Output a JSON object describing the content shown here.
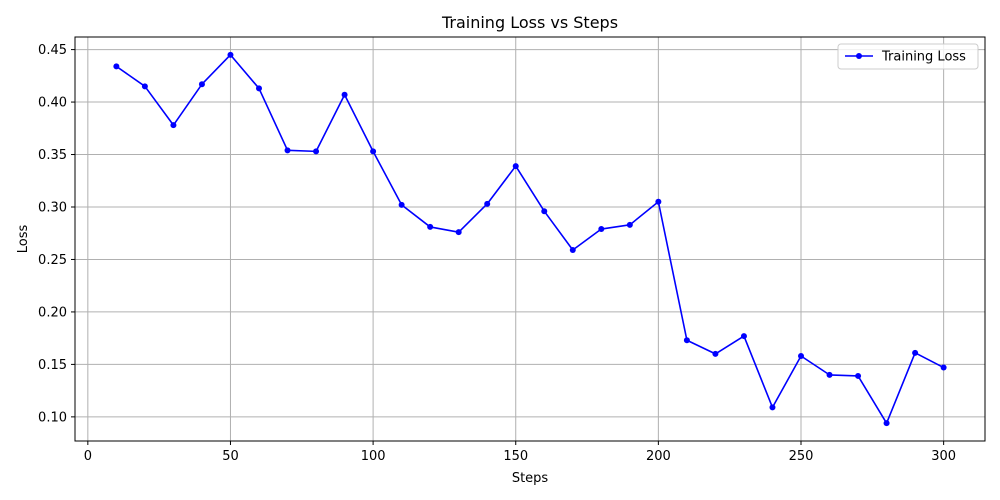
{
  "chart_data": {
    "type": "line",
    "title": "Training Loss vs Steps",
    "xlabel": "Steps",
    "ylabel": "Loss",
    "xlim": [
      -4.5,
      314.5
    ],
    "ylim": [
      0.077,
      0.462
    ],
    "xticks": [
      0,
      50,
      100,
      150,
      200,
      250,
      300
    ],
    "yticks": [
      0.1,
      0.15,
      0.2,
      0.25,
      0.3,
      0.35,
      0.4,
      0.45
    ],
    "grid": true,
    "legend_position": "top-right",
    "series": [
      {
        "name": "Training Loss",
        "color": "#0000ff",
        "marker": "circle",
        "x": [
          10,
          20,
          30,
          40,
          50,
          60,
          70,
          80,
          90,
          100,
          110,
          120,
          130,
          140,
          150,
          160,
          170,
          180,
          190,
          200,
          210,
          220,
          230,
          240,
          250,
          260,
          270,
          280,
          290,
          300
        ],
        "y": [
          0.434,
          0.415,
          0.378,
          0.417,
          0.445,
          0.413,
          0.354,
          0.353,
          0.407,
          0.353,
          0.302,
          0.281,
          0.276,
          0.303,
          0.339,
          0.296,
          0.259,
          0.279,
          0.283,
          0.305,
          0.173,
          0.16,
          0.177,
          0.109,
          0.158,
          0.14,
          0.139,
          0.094,
          0.161,
          0.147
        ]
      }
    ]
  }
}
